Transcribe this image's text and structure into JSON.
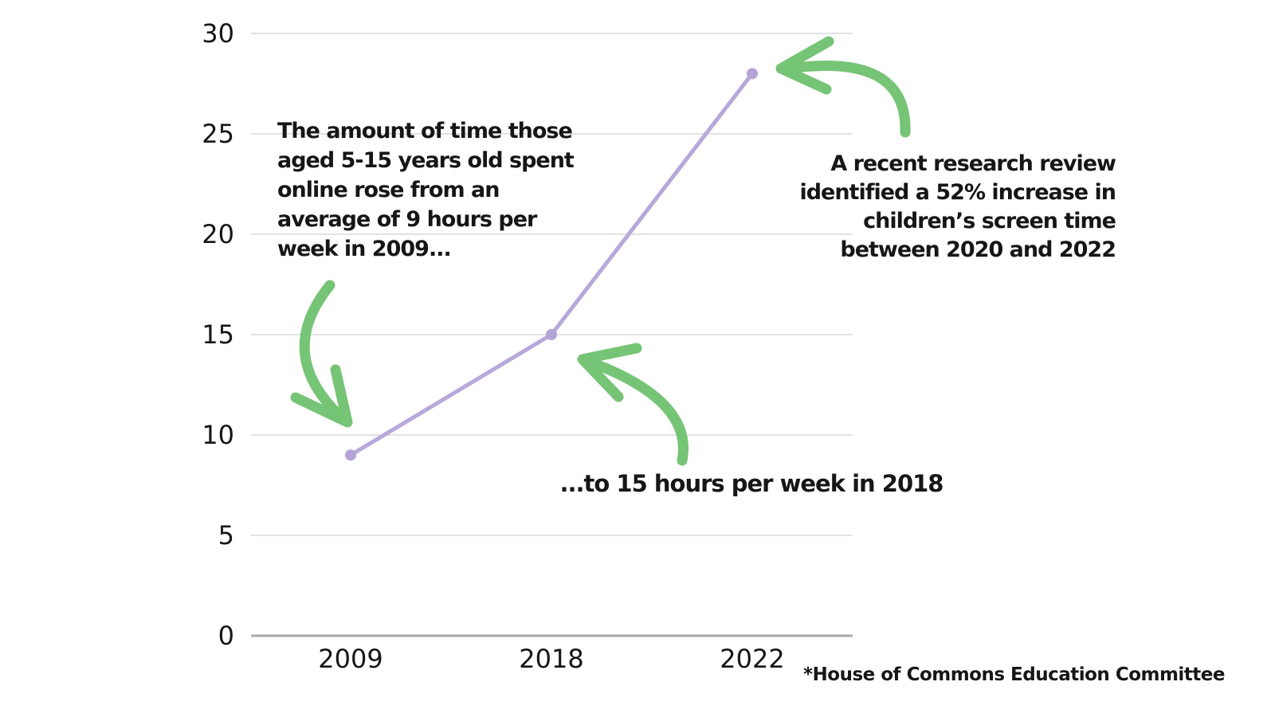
{
  "colors": {
    "line_purple": "#b7a8db",
    "point_purple": "#b3a3d7",
    "arrow_green": "#76c476",
    "gridline_gray": "#e2e2e2",
    "axis_gray": "#a9a9a9",
    "text_dark": "#161616"
  },
  "chart_data": {
    "type": "line",
    "x": [
      "2009",
      "2018",
      "2022"
    ],
    "values": [
      9,
      15,
      28
    ],
    "ylim": [
      0,
      30
    ],
    "yticks": [
      0,
      5,
      10,
      15,
      20,
      25,
      30
    ],
    "grid": true,
    "legend_position": "none"
  },
  "annotations": {
    "note_2009_lines": [
      "The amount of time those",
      "aged 5-15 years old spent",
      "online rose from an",
      "average of 9 hours per",
      "week in 2009..."
    ],
    "note_2018": "...to 15 hours per week in 2018",
    "note_2022_lines": [
      "A recent research review",
      "identified a 52% increase in",
      "children’s screen time",
      "between 2020 and 2022"
    ],
    "source": "*House of Commons Education Committee"
  }
}
